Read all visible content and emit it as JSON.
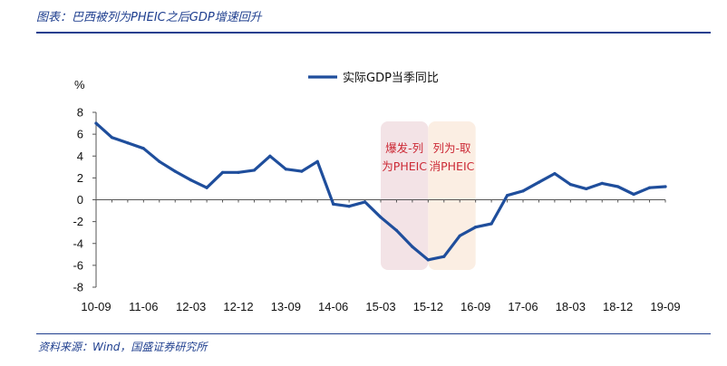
{
  "figure": {
    "title": "图表：巴西被列为PHEIC之后GDP增速回升",
    "source": "资料来源：Wind，国盛证券研究所"
  },
  "colors": {
    "line": "#1f4e9c",
    "shade_a": "#f3e3e6",
    "shade_b": "#fbeee3",
    "axis": "#555555",
    "annotation": "#cc2a36"
  },
  "chart_data": {
    "type": "line",
    "ylabel": "%",
    "ylim": [
      -8,
      8
    ],
    "y_ticks": [
      8,
      6,
      4,
      2,
      0,
      -2,
      -4,
      -6,
      -8
    ],
    "x_tick_labels": [
      "10-09",
      "11-06",
      "12-03",
      "12-12",
      "13-09",
      "14-06",
      "15-03",
      "15-12",
      "16-09",
      "17-06",
      "18-03",
      "18-12",
      "19-09"
    ],
    "legend_position": "top-center",
    "series": [
      {
        "name": "实际GDP当季同比",
        "x": [
          "10-09",
          "10-12",
          "11-03",
          "11-06",
          "11-09",
          "11-12",
          "12-03",
          "12-06",
          "12-09",
          "12-12",
          "13-03",
          "13-06",
          "13-09",
          "13-12",
          "14-03",
          "14-06",
          "14-09",
          "14-12",
          "15-03",
          "15-06",
          "15-09",
          "15-12",
          "16-03",
          "16-06",
          "16-09",
          "16-12",
          "17-03",
          "17-06",
          "17-09",
          "17-12",
          "18-03",
          "18-06",
          "18-09",
          "18-12",
          "19-03",
          "19-06",
          "19-09"
        ],
        "values": [
          7.0,
          5.7,
          5.2,
          4.7,
          3.5,
          2.6,
          1.8,
          1.1,
          2.5,
          2.5,
          2.7,
          4.0,
          2.8,
          2.6,
          3.5,
          -0.4,
          -0.6,
          -0.2,
          -1.6,
          -2.8,
          -4.3,
          -5.5,
          -5.2,
          -3.3,
          -2.5,
          -2.2,
          0.4,
          0.8,
          1.6,
          2.4,
          1.4,
          1.0,
          1.5,
          1.2,
          0.5,
          1.1,
          1.2
        ]
      }
    ],
    "shaded_regions": [
      {
        "label_line1": "爆发-列",
        "label_line2": "为PHEIC",
        "from": "15-03",
        "to": "15-12"
      },
      {
        "label_line1": "列为-取",
        "label_line2": "消PHEIC",
        "from": "15-12",
        "to": "16-09"
      }
    ]
  }
}
